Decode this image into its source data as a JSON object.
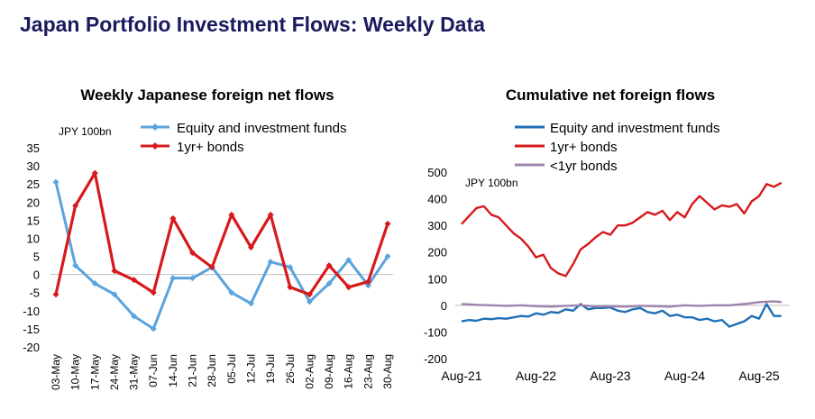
{
  "page": {
    "title": "Japan Portfolio Investment Flows: Weekly Data"
  },
  "chart_data": [
    {
      "type": "line",
      "title": "Weekly Japanese foreign net flows",
      "unit_label": "JPY 100bn",
      "categories": [
        "03-May",
        "10-May",
        "17-May",
        "24-May",
        "31-May",
        "07-Jun",
        "14-Jun",
        "21-Jun",
        "28-Jun",
        "05-Jul",
        "12-Jul",
        "19-Jul",
        "26-Jul",
        "02-Aug",
        "09-Aug",
        "16-Aug",
        "23-Aug",
        "30-Aug"
      ],
      "ylim": [
        -20,
        35
      ],
      "yticks": [
        35,
        30,
        25,
        20,
        15,
        10,
        5,
        0,
        -5,
        -10,
        -15,
        -20
      ],
      "legend_position": "top",
      "series": [
        {
          "name": "Equity and investment funds",
          "color": "#5ba3dc",
          "marker": "diamond",
          "values": [
            25.5,
            2.5,
            -2.5,
            -5.5,
            -11.5,
            -15,
            -1,
            -1,
            2,
            -5,
            -8,
            3.5,
            2,
            -7.5,
            -2.5,
            4,
            -3,
            5
          ]
        },
        {
          "name": "1yr+ bonds",
          "color": "#d7191c",
          "marker": "diamond",
          "values": [
            -5.5,
            19,
            28,
            1,
            -1.5,
            -5,
            15.5,
            6,
            2,
            16.5,
            7.5,
            16.5,
            -3.5,
            -5.5,
            2.5,
            -3.5,
            -2,
            14
          ]
        }
      ]
    },
    {
      "type": "line",
      "title": "Cumulative net foreign flows",
      "unit_label": "JPY 100bn",
      "x_labels": [
        "Aug-21",
        "Aug-22",
        "Aug-23",
        "Aug-24",
        "Aug-25"
      ],
      "ylim": [
        -200,
        500
      ],
      "yticks": [
        500,
        400,
        300,
        200,
        100,
        0,
        -100,
        -200
      ],
      "legend_position": "top",
      "series": [
        {
          "name": "Equity and investment funds",
          "color": "#1f6fb5",
          "x": [
            0,
            0.1,
            0.2,
            0.3,
            0.4,
            0.5,
            0.6,
            0.7,
            0.8,
            0.9,
            1.0,
            1.1,
            1.2,
            1.3,
            1.4,
            1.5,
            1.6,
            1.7,
            1.8,
            1.9,
            2.0,
            2.1,
            2.2,
            2.3,
            2.4,
            2.5,
            2.6,
            2.7,
            2.8,
            2.9,
            3.0,
            3.1,
            3.2,
            3.3,
            3.4,
            3.5,
            3.6,
            3.7,
            3.8,
            3.9,
            4.0,
            4.1,
            4.2,
            4.3
          ],
          "y": [
            -60,
            -55,
            -58,
            -50,
            -52,
            -48,
            -50,
            -45,
            -40,
            -42,
            -30,
            -35,
            -25,
            -28,
            -15,
            -20,
            5,
            -15,
            -10,
            -10,
            -8,
            -20,
            -25,
            -15,
            -10,
            -25,
            -30,
            -20,
            -40,
            -35,
            -45,
            -45,
            -55,
            -50,
            -60,
            -55,
            -80,
            -70,
            -60,
            -40,
            -50,
            5,
            -40,
            -40
          ]
        },
        {
          "name": "1yr+ bonds",
          "color": "#d7191c",
          "x": [
            0,
            0.1,
            0.2,
            0.3,
            0.4,
            0.5,
            0.6,
            0.7,
            0.8,
            0.9,
            1.0,
            1.1,
            1.2,
            1.3,
            1.4,
            1.5,
            1.6,
            1.7,
            1.8,
            1.9,
            2.0,
            2.1,
            2.2,
            2.3,
            2.4,
            2.5,
            2.6,
            2.7,
            2.8,
            2.9,
            3.0,
            3.1,
            3.2,
            3.3,
            3.4,
            3.5,
            3.6,
            3.7,
            3.8,
            3.9,
            4.0,
            4.1,
            4.2,
            4.3
          ],
          "y": [
            305,
            335,
            365,
            372,
            340,
            330,
            300,
            270,
            250,
            220,
            180,
            190,
            140,
            120,
            110,
            155,
            210,
            230,
            255,
            275,
            265,
            300,
            300,
            310,
            330,
            350,
            340,
            355,
            320,
            350,
            330,
            380,
            410,
            385,
            360,
            375,
            370,
            380,
            345,
            390,
            410,
            455,
            445,
            460
          ]
        },
        {
          "name": "<1yr bonds",
          "color": "#9e84ad",
          "x": [
            0,
            0.2,
            0.4,
            0.6,
            0.8,
            1.0,
            1.2,
            1.4,
            1.6,
            1.8,
            2.0,
            2.2,
            2.4,
            2.6,
            2.8,
            3.0,
            3.2,
            3.4,
            3.6,
            3.8,
            4.0,
            4.2,
            4.3
          ],
          "y": [
            5,
            2,
            0,
            -2,
            0,
            -3,
            -5,
            -2,
            0,
            -4,
            -3,
            -5,
            -2,
            -3,
            -5,
            0,
            -2,
            0,
            0,
            5,
            12,
            15,
            12
          ]
        }
      ]
    }
  ]
}
